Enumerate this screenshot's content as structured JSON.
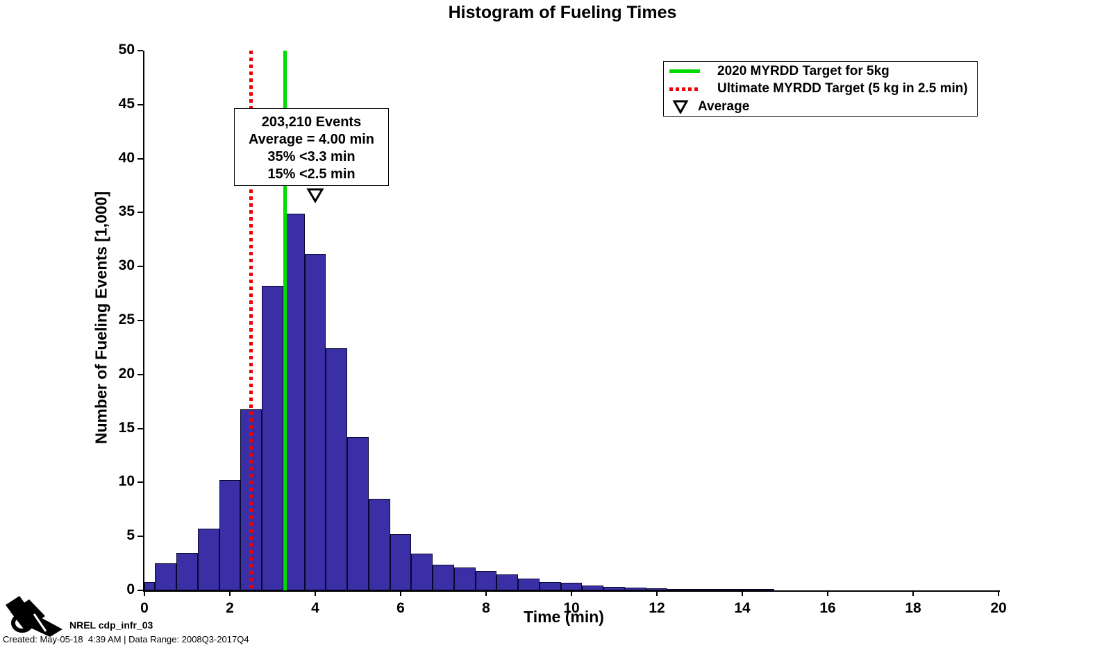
{
  "title": "Histogram of Fueling Times",
  "chart_data": {
    "type": "histogram",
    "title": "Histogram of Fueling Times",
    "xlabel": "Time (min)",
    "ylabel": "Number of Fueling Events [1,000]",
    "xlim": [
      0,
      20
    ],
    "ylim": [
      0,
      50
    ],
    "x_ticks": [
      0,
      2,
      4,
      6,
      8,
      10,
      12,
      14,
      16,
      18,
      20
    ],
    "y_ticks": [
      0,
      5,
      10,
      15,
      20,
      25,
      30,
      35,
      40,
      45,
      50
    ],
    "grid": false,
    "bar_color": "#3a2fa5",
    "bar_edge_color": "#07072e",
    "bins": [
      {
        "x0": 0.0,
        "x1": 0.25,
        "y": 0.75
      },
      {
        "x0": 0.25,
        "x1": 0.75,
        "y": 2.5
      },
      {
        "x0": 0.75,
        "x1": 1.25,
        "y": 3.45
      },
      {
        "x0": 1.25,
        "x1": 1.75,
        "y": 5.7
      },
      {
        "x0": 1.75,
        "x1": 2.25,
        "y": 10.2
      },
      {
        "x0": 2.25,
        "x1": 2.75,
        "y": 16.8
      },
      {
        "x0": 2.75,
        "x1": 3.25,
        "y": 28.2
      },
      {
        "x0": 3.25,
        "x1": 3.75,
        "y": 34.9
      },
      {
        "x0": 3.75,
        "x1": 4.25,
        "y": 31.2
      },
      {
        "x0": 4.25,
        "x1": 4.75,
        "y": 22.4
      },
      {
        "x0": 4.75,
        "x1": 5.25,
        "y": 14.2
      },
      {
        "x0": 5.25,
        "x1": 5.75,
        "y": 8.5
      },
      {
        "x0": 5.75,
        "x1": 6.25,
        "y": 5.2
      },
      {
        "x0": 6.25,
        "x1": 6.75,
        "y": 3.4
      },
      {
        "x0": 6.75,
        "x1": 7.25,
        "y": 2.4
      },
      {
        "x0": 7.25,
        "x1": 7.75,
        "y": 2.1
      },
      {
        "x0": 7.75,
        "x1": 8.25,
        "y": 1.8
      },
      {
        "x0": 8.25,
        "x1": 8.75,
        "y": 1.45
      },
      {
        "x0": 8.75,
        "x1": 9.25,
        "y": 1.1
      },
      {
        "x0": 9.25,
        "x1": 9.75,
        "y": 0.8
      },
      {
        "x0": 9.75,
        "x1": 10.25,
        "y": 0.74
      },
      {
        "x0": 10.25,
        "x1": 10.75,
        "y": 0.48
      },
      {
        "x0": 10.75,
        "x1": 11.25,
        "y": 0.35
      },
      {
        "x0": 11.25,
        "x1": 11.75,
        "y": 0.25
      },
      {
        "x0": 11.75,
        "x1": 12.25,
        "y": 0.2
      },
      {
        "x0": 12.25,
        "x1": 12.75,
        "y": 0.15
      },
      {
        "x0": 12.75,
        "x1": 13.25,
        "y": 0.12
      },
      {
        "x0": 13.25,
        "x1": 13.75,
        "y": 0.07
      },
      {
        "x0": 13.75,
        "x1": 14.25,
        "y": 0.05
      },
      {
        "x0": 14.25,
        "x1": 14.75,
        "y": 0.04
      }
    ],
    "target_lines": [
      {
        "name": "2020 MYRDD Target for 5kg",
        "x": 3.3,
        "color": "#00dd00",
        "style": "solid"
      },
      {
        "name": "Ultimate MYRDD Target (5 kg in 2.5 min)",
        "x": 2.5,
        "color": "#f00000",
        "style": "dotted"
      }
    ],
    "average_marker": {
      "x": 4.0,
      "y": 36.6,
      "label": "Average",
      "symbol": "open-down-triangle-marker"
    },
    "legend_position": "northeast"
  },
  "legend": {
    "entries": [
      {
        "label": "2020 MYRDD Target for 5kg",
        "symbol": "green-solid-line",
        "color": "#00dd00"
      },
      {
        "label": "Ultimate MYRDD Target (5 kg in 2.5 min)",
        "symbol": "red-dotted-line",
        "color": "#f00000"
      },
      {
        "label": "Average",
        "symbol": "open-down-triangle-marker",
        "color": "#000000"
      }
    ]
  },
  "annotation": {
    "lines": [
      "203,210 Events",
      "Average = 4.00 min",
      "35% <3.3 min",
      "15% <2.5 min"
    ]
  },
  "footer": {
    "logo_icon": "fuel-nozzle-icon",
    "label": "NREL cdp_infr_03",
    "created_line": "Created: May-05-18  4:39 AM | Data Range: 2008Q3-2017Q4"
  }
}
